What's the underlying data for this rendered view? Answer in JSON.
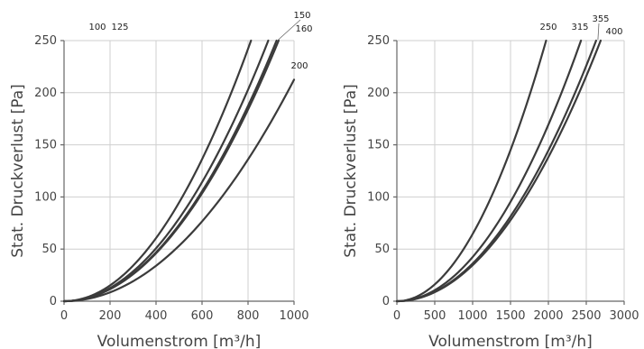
{
  "chart_data": [
    {
      "type": "line",
      "xlabel": "Volumenstrom [m³/h]",
      "ylabel": "Stat. Druckverlust [Pa]",
      "xlim": [
        0,
        1000
      ],
      "ylim": [
        0,
        250
      ],
      "xticks": [
        0,
        200,
        400,
        600,
        800,
        1000
      ],
      "yticks": [
        0,
        50,
        100,
        150,
        200,
        250
      ],
      "grid": true,
      "series": [
        {
          "name": "100",
          "x": [
            0,
            200,
            400,
            600,
            800,
            813
          ],
          "y": [
            0,
            15.1,
            60.5,
            136.1,
            242.0,
            250
          ]
        },
        {
          "name": "125",
          "x": [
            0,
            200,
            400,
            600,
            800,
            888
          ],
          "y": [
            0,
            12.7,
            50.7,
            114.2,
            203.0,
            250
          ]
        },
        {
          "name": "150",
          "x": [
            0,
            200,
            400,
            600,
            800,
            924
          ],
          "y": [
            0,
            11.7,
            46.8,
            105.3,
            187.2,
            250
          ]
        },
        {
          "name": "160",
          "x": [
            0,
            200,
            400,
            600,
            800,
            933
          ],
          "y": [
            0,
            11.5,
            45.9,
            103.3,
            183.8,
            250
          ]
        },
        {
          "name": "200",
          "x": [
            0,
            200,
            400,
            600,
            800,
            1000
          ],
          "y": [
            0,
            8.5,
            34.0,
            76.5,
            136.0,
            212.5
          ]
        }
      ]
    },
    {
      "type": "line",
      "xlabel": "Volumenstrom [m³/h]",
      "ylabel": "Stat. Druckverlust [Pa]",
      "xlim": [
        0,
        3000
      ],
      "ylim": [
        0,
        250
      ],
      "xticks": [
        0,
        500,
        1000,
        1500,
        2000,
        2500,
        3000
      ],
      "yticks": [
        0,
        50,
        100,
        150,
        200,
        250
      ],
      "grid": true,
      "series": [
        {
          "name": "250",
          "x": [
            0,
            500,
            1000,
            1500,
            1970
          ],
          "y": [
            0,
            16.1,
            64.4,
            144.9,
            250
          ]
        },
        {
          "name": "315",
          "x": [
            0,
            500,
            1000,
            1500,
            2000,
            2430
          ],
          "y": [
            0,
            10.6,
            42.3,
            95.2,
            169.3,
            250
          ]
        },
        {
          "name": "355",
          "x": [
            0,
            500,
            1000,
            1500,
            2000,
            2500,
            2630
          ],
          "y": [
            0,
            9.0,
            36.1,
            81.3,
            144.5,
            225.8,
            250
          ]
        },
        {
          "name": "400",
          "x": [
            0,
            500,
            1000,
            1500,
            2000,
            2500,
            2690
          ],
          "y": [
            0,
            8.6,
            34.5,
            77.7,
            138.2,
            215.9,
            250
          ]
        }
      ]
    }
  ]
}
